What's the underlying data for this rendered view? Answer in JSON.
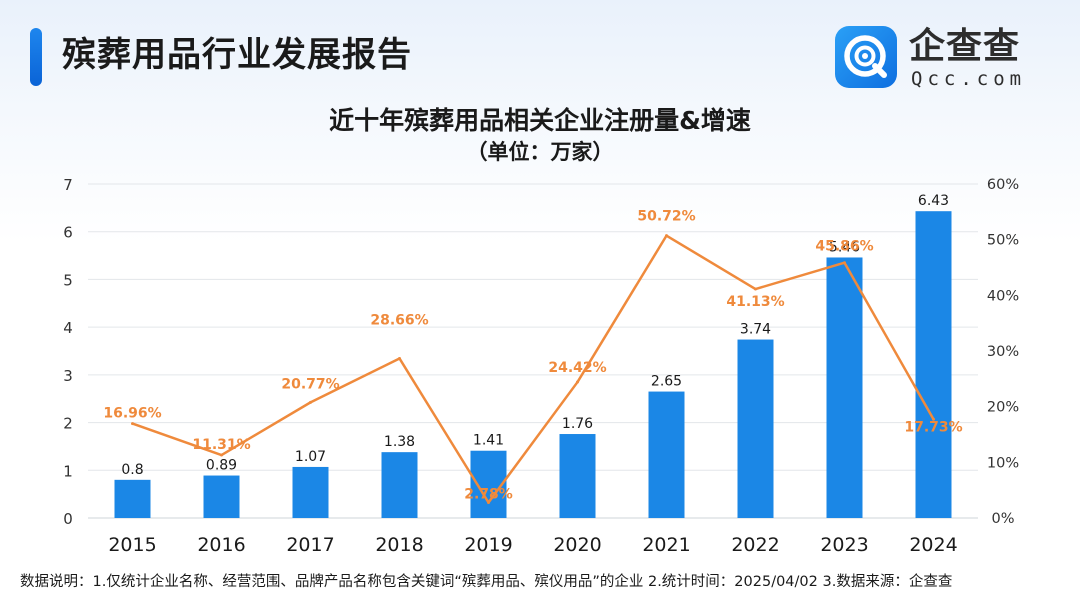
{
  "header": {
    "title": "殡葬用品行业发展报告",
    "brand_name": "企查查",
    "brand_domain": "Qcc.com"
  },
  "chart_data": {
    "type": "bar",
    "title": "近十年殡葬用品相关企业注册量&增速",
    "subtitle": "（单位：万家）",
    "categories": [
      "2015",
      "2016",
      "2017",
      "2018",
      "2019",
      "2020",
      "2021",
      "2022",
      "2023",
      "2024"
    ],
    "series": [
      {
        "type": "bar",
        "axis": "left",
        "color": "#1b87e6",
        "values": [
          0.8,
          0.89,
          1.07,
          1.38,
          1.41,
          1.76,
          2.65,
          3.74,
          5.46,
          6.43
        ],
        "value_labels": [
          "0.8",
          "0.89",
          "1.07",
          "1.38",
          "1.41",
          "1.76",
          "2.65",
          "3.74",
          "5.46",
          "6.43"
        ]
      },
      {
        "type": "line",
        "axis": "right",
        "color": "#ef8a3c",
        "values": [
          16.96,
          11.31,
          20.77,
          28.66,
          2.78,
          24.42,
          50.72,
          41.13,
          45.86,
          17.73
        ],
        "value_labels": [
          "16.96%",
          "11.31%",
          "20.77%",
          "28.66%",
          "2.78%",
          "24.42%",
          "50.72%",
          "41.13%",
          "45.86%",
          "17.73%"
        ]
      }
    ],
    "y_left": {
      "lim": [
        0,
        7
      ],
      "ticks": [
        "0",
        "1",
        "2",
        "3",
        "4",
        "5",
        "6",
        "7"
      ]
    },
    "y_right": {
      "lim": [
        0,
        60
      ],
      "ticks": [
        "0%",
        "10%",
        "20%",
        "30%",
        "40%",
        "50%",
        "60%"
      ]
    },
    "grid": true
  },
  "footnote": "数据说明：1.仅统计企业名称、经营范围、品牌产品名称包含关键词“殡葬用品、殡仪用品”的企业  2.统计时间：2025/04/02   3.数据来源：企查查"
}
